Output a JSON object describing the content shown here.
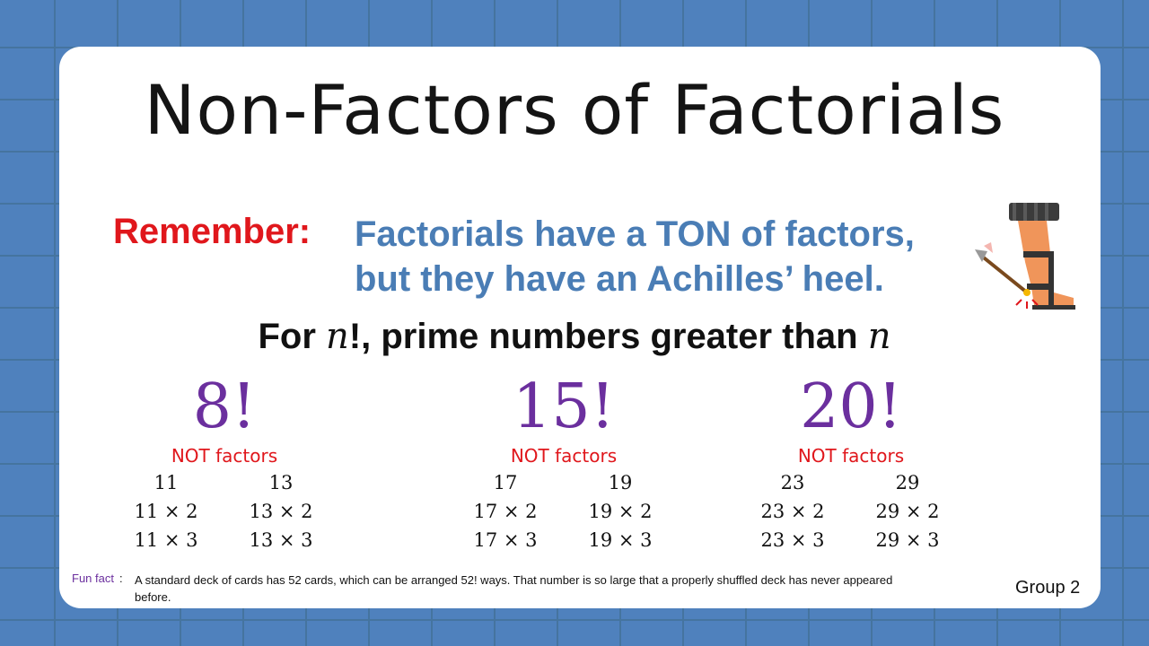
{
  "title": "Non-Factors of Factorials",
  "remember": {
    "label": "Remember:",
    "line1": "Factorials have a TON of factors,",
    "line2": "but they have an Achilles’ heel."
  },
  "rule": {
    "prefix": "For ",
    "var1": "n",
    "mid": "!, prime numbers greater than ",
    "var2": "n"
  },
  "columns": [
    {
      "factorial": "8!",
      "caption": "NOT factors",
      "items": [
        "11",
        "13",
        "11 × 2",
        "13 × 2",
        "11 × 3",
        "13 × 3"
      ]
    },
    {
      "factorial": "15!",
      "caption": "NOT factors",
      "items": [
        "17",
        "19",
        "17 × 2",
        "19 × 2",
        "17 × 3",
        "19 × 3"
      ]
    },
    {
      "factorial": "20!",
      "caption": "NOT factors",
      "items": [
        "23",
        "29",
        "23 × 2",
        "29 × 2",
        "23 × 3",
        "29 × 3"
      ]
    }
  ],
  "fun_fact": {
    "label": "Fun fact",
    "separator": ":",
    "text": "A standard deck of cards has 52 cards, which can be arranged 52! ways. That number  is so large that a properly  shuffled deck has never appeared before."
  },
  "footer": {
    "group": "Group 2"
  },
  "colors": {
    "background": "#4f81bd",
    "title": "#141414",
    "remember": "#e0171c",
    "highlight": "#4a7db5",
    "factorial": "#6b2f9e"
  },
  "icons": {
    "achilles": "achilles-heel-icon"
  }
}
